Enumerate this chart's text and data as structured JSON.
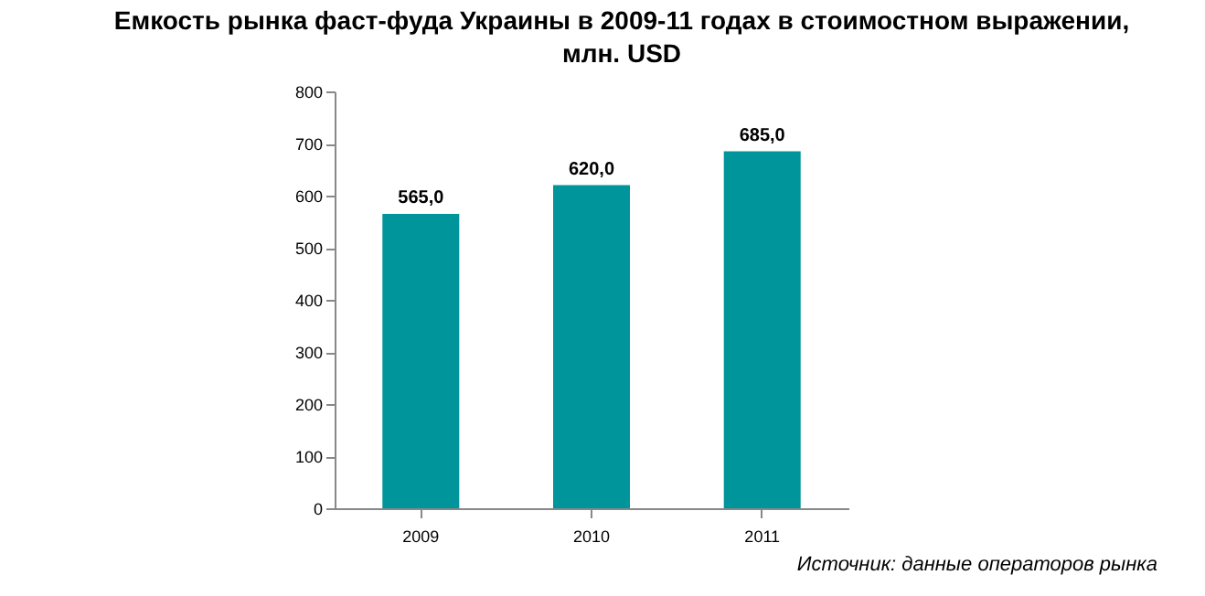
{
  "chart_data": {
    "type": "bar",
    "title": "Емкость рынка фаст-фуда Украины в 2009-11 годах в стоимостном выражении, млн. USD",
    "categories": [
      "2009",
      "2010",
      "2011"
    ],
    "values": [
      565,
      620,
      685
    ],
    "value_labels": [
      "565,0",
      "620,0",
      "685,0"
    ],
    "color": "#00959b",
    "ylim": [
      0,
      800
    ],
    "yticks": [
      0,
      100,
      200,
      300,
      400,
      500,
      600,
      700,
      800
    ],
    "grid": false,
    "annotations": [
      "Источник: данные операторов рынка"
    ]
  }
}
